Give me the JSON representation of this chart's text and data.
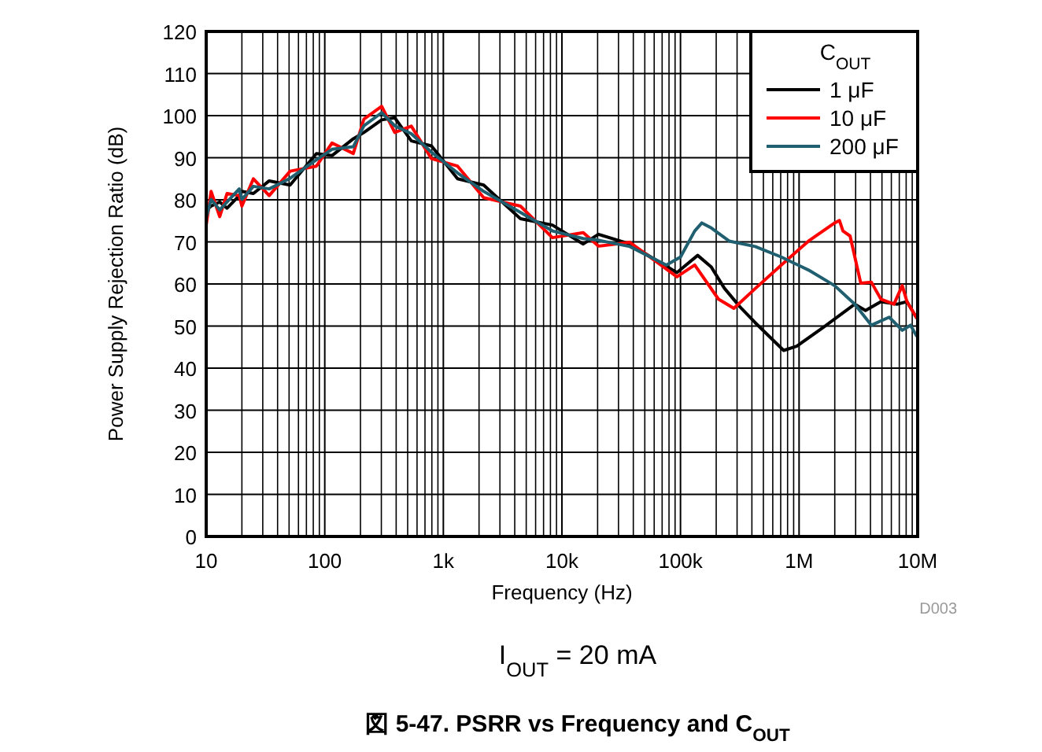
{
  "chart_data": {
    "type": "line",
    "title": "図 5-47. PSRR vs Frequency and C$_{OUT}$",
    "xlabel": "Frequency (Hz)",
    "ylabel": "Power Supply Rejection Ratio (dB)",
    "legend_title": "C$_{OUT}$",
    "legend": "top right",
    "grid": true,
    "log": "x",
    "line_style": "solid",
    "annotations": [
      "D003",
      "I$_{OUT}$ = 20 mA"
    ],
    "xlim": [
      10,
      10000000
    ],
    "xticks": [
      10,
      100,
      {
        "value": 1000,
        "label": "1k"
      },
      {
        "value": 10000,
        "label": "10k"
      },
      {
        "value": 100000,
        "label": "100k"
      },
      {
        "value": 1000000,
        "label": "1M"
      },
      {
        "value": 10000000,
        "label": "10M"
      }
    ],
    "ylim": [
      0,
      120
    ],
    "yticks": [
      0,
      10,
      20,
      30,
      40,
      50,
      60,
      70,
      80,
      90,
      100,
      110,
      120
    ],
    "series": [
      {
        "name": "1 μF",
        "color": "#000000",
        "x": [
          10,
          11,
          13,
          15,
          19,
          20,
          25,
          34,
          51,
          85,
          115,
          174,
          214,
          302,
          389,
          537,
          794,
          1318,
          2188,
          4467,
          8318,
          15136,
          20300,
          37400,
          56200,
          93300,
          139600,
          182000,
          234400,
          316200,
          426600,
          741300,
          955000,
          1585000,
          2951000,
          3631000,
          4898000,
          6761000,
          8128000,
          9772000
        ],
        "values": [
          77.5,
          78.5,
          79.5,
          78,
          81,
          82,
          81.5,
          84.5,
          83.5,
          91,
          90.5,
          94.5,
          96,
          99,
          99.5,
          94,
          92.8,
          85,
          83.5,
          75.5,
          74,
          69.5,
          71.8,
          69.5,
          66.4,
          62.7,
          66.8,
          64,
          59,
          54.6,
          50.8,
          44.2,
          45.2,
          49.6,
          55.2,
          53.7,
          55.8,
          55.2,
          55.8,
          52
        ]
      },
      {
        "name": "10 μF",
        "color": "#ff0000",
        "x": [
          10,
          11,
          13,
          15,
          19,
          20,
          25,
          34,
          51,
          85,
          115,
          174,
          214,
          302,
          389,
          537,
          794,
          1318,
          2188,
          4467,
          8318,
          15136,
          20300,
          37400,
          63100,
          93300,
          131800,
          208900,
          281800,
          426600,
          707900,
          1202000,
          1995000,
          2188000,
          2344000,
          2692000,
          3311000,
          4074000,
          4898000,
          6310000,
          7413000,
          8128000,
          9772000
        ],
        "values": [
          74,
          82,
          76,
          81.5,
          81,
          78.5,
          85,
          81,
          86.8,
          88,
          93.5,
          91,
          99.2,
          102.2,
          96,
          97.5,
          89.8,
          88,
          80.5,
          78.5,
          71,
          72.2,
          69,
          69.9,
          65.2,
          61.7,
          64.5,
          56.4,
          54.2,
          58.9,
          64.5,
          70.2,
          74.5,
          75.1,
          72.6,
          71.4,
          60.2,
          60.4,
          56.4,
          55.2,
          59.6,
          55.8,
          52
        ]
      },
      {
        "name": "200 μF",
        "color": "#1f5f6f",
        "x": [
          10,
          11,
          13,
          15,
          19,
          20,
          25,
          34,
          51,
          85,
          115,
          174,
          214,
          302,
          389,
          537,
          794,
          1318,
          2188,
          4467,
          8318,
          15136,
          20300,
          37400,
          75900,
          100000,
          131800,
          151400,
          182000,
          257000,
          426600,
          707900,
          1202000,
          1995000,
          2951000,
          4074000,
          5754000,
          7413000,
          8710000,
          9772000
        ],
        "values": [
          75.8,
          80.1,
          77.6,
          79.5,
          82.6,
          80.1,
          83.2,
          82.6,
          85.1,
          89.5,
          92.0,
          92.6,
          97.6,
          100.7,
          97.6,
          95.7,
          91.3,
          86.4,
          82.0,
          77.0,
          72.6,
          70.8,
          70.4,
          68.9,
          64.5,
          66.4,
          72.6,
          74.5,
          73.3,
          70.2,
          68.9,
          66.4,
          63.3,
          59.6,
          55.2,
          50.2,
          52.1,
          49,
          50.2,
          47.7
        ]
      }
    ]
  }
}
